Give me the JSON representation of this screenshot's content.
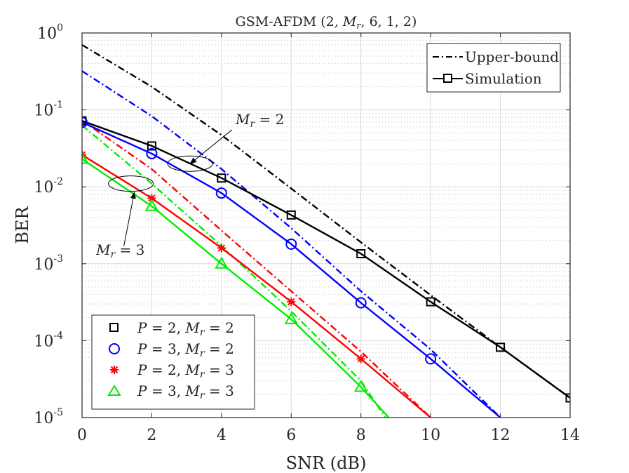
{
  "chart_data": {
    "type": "line",
    "title": "GSM-AFDM (2, M_r, 6, 1, 2)",
    "title_parts": {
      "prefix": "GSM-AFDM (2, ",
      "var": "M",
      "sub": "r",
      "suffix": ", 6, 1, 2)"
    },
    "xlabel": "SNR (dB)",
    "ylabel": "BER",
    "xlim": [
      0,
      14
    ],
    "ylim": [
      1e-05,
      1
    ],
    "yscale": "log",
    "grid": true,
    "xticks": [
      0,
      2,
      4,
      6,
      8,
      10,
      12,
      14
    ],
    "xtick_labels": [
      "0",
      "2",
      "4",
      "6",
      "8",
      "10",
      "12",
      "14"
    ],
    "yticks": [
      {
        "value": 1,
        "exp": "0"
      },
      {
        "value": 0.1,
        "exp": "-1"
      },
      {
        "value": 0.01,
        "exp": "-2"
      },
      {
        "value": 0.001,
        "exp": "-3"
      },
      {
        "value": 0.0001,
        "exp": "-4"
      },
      {
        "value": 1e-05,
        "exp": "-5"
      }
    ],
    "style_legend": {
      "position": "top-right",
      "items": [
        {
          "label": "Upper-bound",
          "style": "dashdot"
        },
        {
          "label": "Simulation",
          "style": "solid-square"
        }
      ]
    },
    "series_legend": {
      "position": "bottom-left",
      "items": [
        {
          "P": "2",
          "Mr": "2",
          "marker": "square",
          "color": "#000000"
        },
        {
          "P": "3",
          "Mr": "2",
          "marker": "circle",
          "color": "#0000ff"
        },
        {
          "P": "2",
          "Mr": "3",
          "marker": "asterisk",
          "color": "#ff0000"
        },
        {
          "P": "3",
          "Mr": "3",
          "marker": "triangle",
          "color": "#00ee00"
        }
      ]
    },
    "series": [
      {
        "name": "P=2, Mr=2 Simulation",
        "color": "#000000",
        "style": "solid",
        "marker": "square",
        "x": [
          0,
          2,
          4,
          6,
          8,
          10,
          12,
          14
        ],
        "y": [
          0.072,
          0.034,
          0.013,
          0.0043,
          0.00135,
          0.00032,
          8.2e-05,
          1.8e-05
        ]
      },
      {
        "name": "P=2, Mr=2 Upper-bound",
        "color": "#000000",
        "style": "dashdot",
        "marker": "none",
        "x": [
          0,
          2,
          4,
          6,
          8,
          10,
          12,
          14
        ],
        "y": [
          0.7,
          0.2,
          0.047,
          0.0095,
          0.0019,
          0.00039,
          8.2e-05,
          1.8e-05
        ]
      },
      {
        "name": "P=3, Mr=2 Simulation",
        "color": "#0000ff",
        "style": "solid",
        "marker": "circle",
        "x": [
          0,
          2,
          4,
          6,
          8,
          10,
          12
        ],
        "y": [
          0.069,
          0.027,
          0.0083,
          0.0018,
          0.00031,
          5.8e-05,
          1e-05
        ]
      },
      {
        "name": "P=3, Mr=2 Upper-bound",
        "color": "#0000ff",
        "style": "dashdot",
        "marker": "none",
        "x": [
          0,
          2,
          4,
          6,
          8,
          10,
          12
        ],
        "y": [
          0.32,
          0.083,
          0.017,
          0.0029,
          0.00044,
          7.7e-05,
          1e-05
        ]
      },
      {
        "name": "P=2, Mr=3 Simulation",
        "color": "#ff0000",
        "style": "solid",
        "marker": "asterisk",
        "x": [
          0,
          2,
          4,
          6,
          8,
          10
        ],
        "y": [
          0.026,
          0.0071,
          0.0016,
          0.00032,
          5.8e-05,
          1e-05
        ]
      },
      {
        "name": "P=2, Mr=3 Upper-bound",
        "color": "#ff0000",
        "style": "dashdot",
        "marker": "none",
        "x": [
          0,
          2,
          4,
          6,
          8,
          10
        ],
        "y": [
          0.073,
          0.017,
          0.0027,
          0.00044,
          7.2e-05,
          1e-05
        ]
      },
      {
        "name": "P=3, Mr=3 Simulation",
        "color": "#00ee00",
        "style": "solid",
        "marker": "triangle",
        "x": [
          0,
          2,
          4,
          6,
          8,
          8.8
        ],
        "y": [
          0.023,
          0.0056,
          0.001,
          0.00019,
          2.5e-05,
          1e-05
        ]
      },
      {
        "name": "P=3, Mr=3 Upper-bound",
        "color": "#00ee00",
        "style": "dashdot",
        "marker": "none",
        "x": [
          0,
          2,
          4,
          6,
          8,
          8.7
        ],
        "y": [
          0.063,
          0.011,
          0.0017,
          0.00024,
          3e-05,
          1e-05
        ]
      }
    ],
    "annotations": [
      {
        "var": "M",
        "sub": "r",
        "rhs": " = 2",
        "ellipse_center": [
          3.1,
          0.02
        ],
        "arrow_from": [
          4.3,
          0.055
        ],
        "arrow_to": [
          3.1,
          0.02
        ]
      },
      {
        "var": "M",
        "sub": "r",
        "rhs": " = 3",
        "ellipse_center": [
          1.4,
          0.011
        ],
        "arrow_from": [
          1.2,
          0.0017
        ],
        "arrow_to": [
          1.5,
          0.0085
        ]
      }
    ]
  }
}
